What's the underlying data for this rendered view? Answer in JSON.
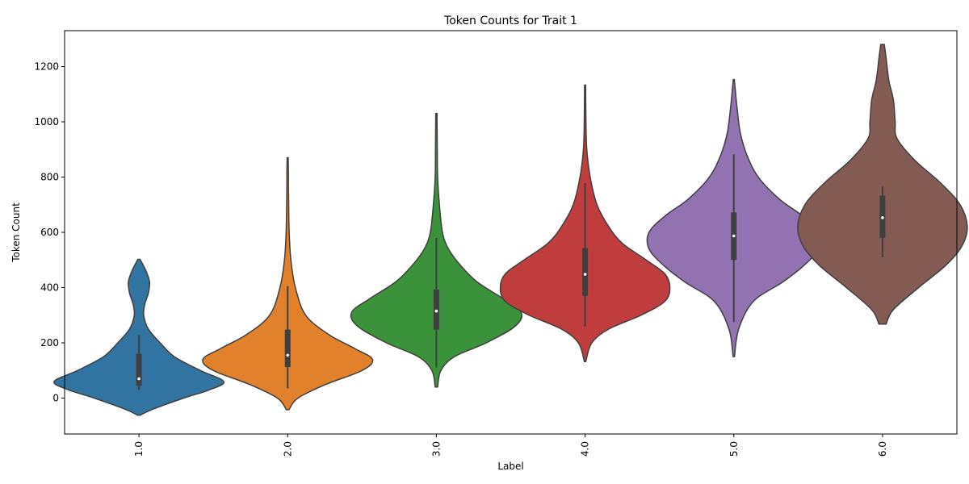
{
  "chart_data": {
    "type": "violin",
    "title": "Token Counts for Trait 1",
    "xlabel": "Label",
    "ylabel": "Token Count",
    "ylim": [
      -130,
      1330
    ],
    "yticks": [
      0,
      200,
      400,
      600,
      800,
      1000,
      1200
    ],
    "categories": [
      "1.0",
      "2.0",
      "3.0",
      "4.0",
      "5.0",
      "6.0"
    ],
    "colors": [
      "#3274a1",
      "#e1812c",
      "#3a923a",
      "#c03d3e",
      "#9372b2",
      "#845b53"
    ],
    "grid": false,
    "legend": "none",
    "violins": [
      {
        "label": "1.0",
        "min": -62,
        "max": 502,
        "q1": 45,
        "median": 70,
        "q3": 160,
        "whisker_low": 30,
        "whisker_high": 228,
        "density": [
          [
            -62,
            0.01
          ],
          [
            -40,
            0.12
          ],
          [
            0,
            0.38
          ],
          [
            30,
            0.6
          ],
          [
            60,
            0.72
          ],
          [
            100,
            0.52
          ],
          [
            150,
            0.3
          ],
          [
            200,
            0.18
          ],
          [
            250,
            0.08
          ],
          [
            300,
            0.04
          ],
          [
            340,
            0.05
          ],
          [
            380,
            0.08
          ],
          [
            420,
            0.09
          ],
          [
            460,
            0.06
          ],
          [
            502,
            0.01
          ]
        ]
      },
      {
        "label": "2.0",
        "min": -42,
        "max": 870,
        "q1": 112,
        "median": 155,
        "q3": 248,
        "whisker_low": 35,
        "whisker_high": 405,
        "density": [
          [
            -42,
            0.01
          ],
          [
            0,
            0.08
          ],
          [
            50,
            0.3
          ],
          [
            100,
            0.58
          ],
          [
            140,
            0.66
          ],
          [
            180,
            0.52
          ],
          [
            230,
            0.32
          ],
          [
            300,
            0.14
          ],
          [
            400,
            0.06
          ],
          [
            500,
            0.025
          ],
          [
            600,
            0.012
          ],
          [
            700,
            0.008
          ],
          [
            770,
            0.006
          ],
          [
            820,
            0.006
          ],
          [
            870,
            0.004
          ]
        ]
      },
      {
        "label": "3.0",
        "min": 40,
        "max": 1030,
        "q1": 248,
        "median": 315,
        "q3": 393,
        "whisker_low": 110,
        "whisker_high": 580,
        "density": [
          [
            40,
            0.008
          ],
          [
            100,
            0.03
          ],
          [
            150,
            0.12
          ],
          [
            200,
            0.33
          ],
          [
            260,
            0.52
          ],
          [
            310,
            0.56
          ],
          [
            360,
            0.44
          ],
          [
            420,
            0.27
          ],
          [
            480,
            0.16
          ],
          [
            540,
            0.08
          ],
          [
            600,
            0.04
          ],
          [
            700,
            0.02
          ],
          [
            800,
            0.008
          ],
          [
            900,
            0.006
          ],
          [
            1030,
            0.004
          ]
        ]
      },
      {
        "label": "4.0",
        "min": 132,
        "max": 1133,
        "q1": 370,
        "median": 448,
        "q3": 543,
        "whisker_low": 260,
        "whisker_high": 778,
        "density": [
          [
            132,
            0.004
          ],
          [
            200,
            0.04
          ],
          [
            250,
            0.14
          ],
          [
            300,
            0.33
          ],
          [
            350,
            0.47
          ],
          [
            400,
            0.5
          ],
          [
            450,
            0.47
          ],
          [
            500,
            0.36
          ],
          [
            560,
            0.22
          ],
          [
            620,
            0.14
          ],
          [
            700,
            0.07
          ],
          [
            800,
            0.03
          ],
          [
            900,
            0.01
          ],
          [
            1000,
            0.005
          ],
          [
            1133,
            0.003
          ]
        ]
      },
      {
        "label": "5.0",
        "min": 150,
        "max": 1153,
        "q1": 500,
        "median": 587,
        "q3": 672,
        "whisker_low": 275,
        "whisker_high": 882,
        "density": [
          [
            150,
            0.004
          ],
          [
            250,
            0.03
          ],
          [
            350,
            0.12
          ],
          [
            420,
            0.3
          ],
          [
            480,
            0.43
          ],
          [
            540,
            0.52
          ],
          [
            600,
            0.52
          ],
          [
            660,
            0.42
          ],
          [
            720,
            0.28
          ],
          [
            800,
            0.15
          ],
          [
            880,
            0.08
          ],
          [
            960,
            0.04
          ],
          [
            1050,
            0.02
          ],
          [
            1110,
            0.01
          ],
          [
            1153,
            0.003
          ]
        ]
      },
      {
        "label": "6.0",
        "min": 268,
        "max": 1280,
        "q1": 580,
        "median": 653,
        "q3": 733,
        "whisker_low": 510,
        "whisker_high": 765,
        "density": [
          [
            268,
            0.02
          ],
          [
            320,
            0.06
          ],
          [
            400,
            0.2
          ],
          [
            480,
            0.35
          ],
          [
            550,
            0.44
          ],
          [
            620,
            0.47
          ],
          [
            700,
            0.43
          ],
          [
            780,
            0.32
          ],
          [
            860,
            0.18
          ],
          [
            940,
            0.08
          ],
          [
            1000,
            0.07
          ],
          [
            1080,
            0.06
          ],
          [
            1150,
            0.035
          ],
          [
            1230,
            0.02
          ],
          [
            1280,
            0.01
          ]
        ]
      }
    ]
  }
}
